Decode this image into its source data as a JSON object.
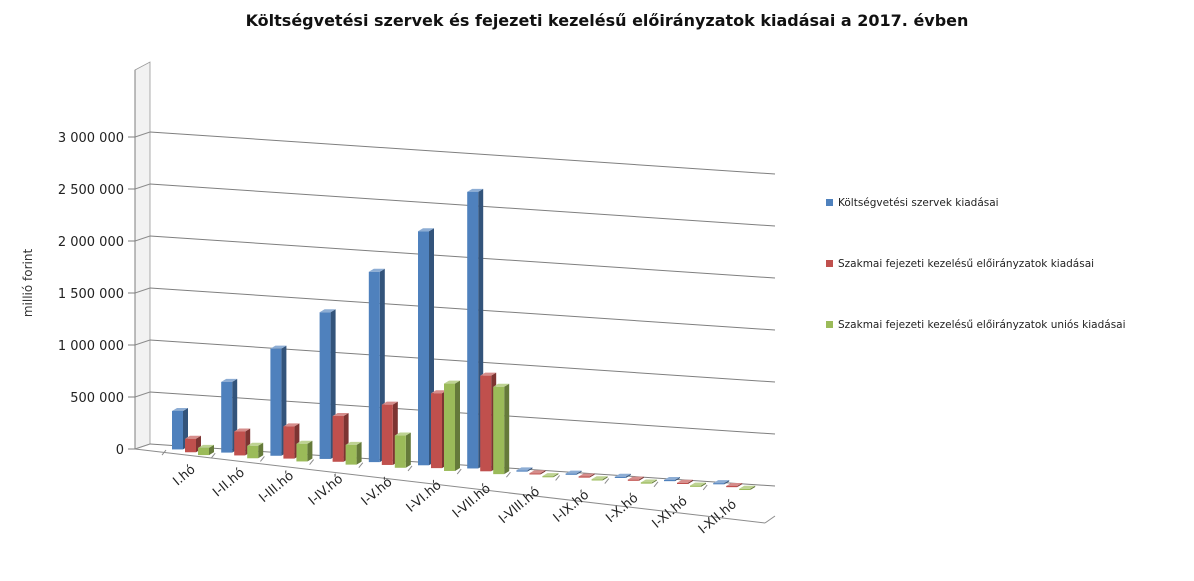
{
  "chart_data": {
    "type": "bar",
    "title": "Költségvetési szervek és fejezeti kezelésű előirányzatok kiadásai a 2017. évben",
    "ylabel": "millió forint",
    "xlabel": "",
    "ylim": [
      0,
      3000000
    ],
    "yticks": [
      0,
      500000,
      1000000,
      1500000,
      2000000,
      2500000,
      3000000
    ],
    "ytick_labels": [
      "0",
      "500 000",
      "1 000 000",
      "1 500 000",
      "2 000 000",
      "2 500 000",
      "3 000 000"
    ],
    "categories": [
      "I.hó",
      "I-II.hó",
      "I-III.hó",
      "I-IV.hó",
      "I-V.hó",
      "I-VI.hó",
      "I-VII.hó",
      "I-VIII.hó",
      "I-IX.hó",
      "I-X.hó",
      "I-XI.hó",
      "I-XII.hó"
    ],
    "series": [
      {
        "name": "Költségvetési szervek  kiadásai",
        "color": "#4f81bd",
        "values": [
          370000,
          680000,
          1030000,
          1410000,
          1830000,
          2250000,
          2660000,
          0,
          0,
          0,
          0,
          0
        ]
      },
      {
        "name": "Szakmai fejezeti kezelésű előirányzatok kiadásai",
        "color": "#c0504d",
        "values": [
          130000,
          230000,
          310000,
          440000,
          580000,
          720000,
          920000,
          0,
          0,
          0,
          0,
          0
        ]
      },
      {
        "name": "Szakmai fejezeti kezelésű előirányzatok uniós kiadásai",
        "color": "#9bbb59",
        "values": [
          70000,
          120000,
          170000,
          190000,
          310000,
          840000,
          840000,
          0,
          0,
          0,
          0,
          0
        ]
      }
    ],
    "legend_position": "right",
    "grid": true,
    "style": "3d-clustered-column"
  }
}
